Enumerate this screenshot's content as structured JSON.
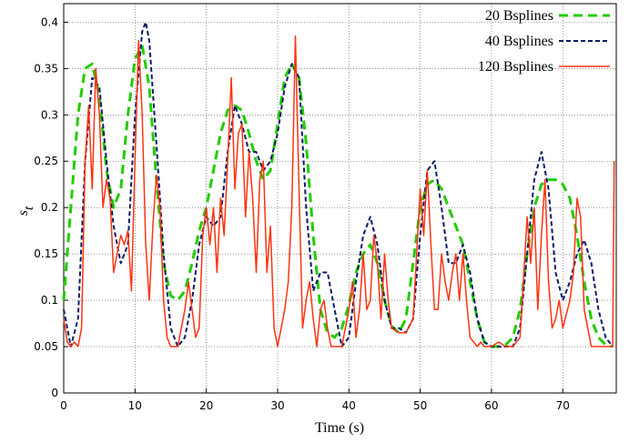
{
  "chart_data": {
    "type": "line",
    "xlabel": "Time (s)",
    "ylabel": "s",
    "ylabel_sub": "t",
    "xlim": [
      0,
      77.5
    ],
    "ylim": [
      0,
      0.42
    ],
    "xticks": [
      0,
      10,
      20,
      30,
      40,
      50,
      60,
      70
    ],
    "yticks": [
      0,
      0.05,
      0.1,
      0.15,
      0.2,
      0.25,
      0.3,
      0.35,
      0.4
    ],
    "grid": true,
    "legend": "top-right",
    "series": [
      {
        "name": "20 Bsplines",
        "color": "#22cc00",
        "dash": "10,6",
        "width": 3,
        "x": [
          0,
          1,
          2,
          3,
          4,
          5,
          6,
          7,
          8,
          9,
          10,
          11,
          12,
          13,
          14,
          15,
          16,
          17,
          18,
          19,
          20,
          21,
          22,
          23,
          24,
          25,
          26,
          27,
          28,
          29,
          30,
          31,
          32,
          33,
          34,
          35,
          36,
          37,
          38,
          39,
          40,
          41,
          42,
          43,
          44,
          45,
          46,
          47,
          48,
          49,
          50,
          51,
          52,
          53,
          54,
          55,
          56,
          57,
          58,
          59,
          60,
          61,
          62,
          63,
          64,
          65,
          66,
          67,
          68,
          69,
          70,
          71,
          72,
          73,
          74,
          75,
          76,
          77
        ],
        "values": [
          0.1,
          0.2,
          0.3,
          0.35,
          0.355,
          0.32,
          0.24,
          0.2,
          0.22,
          0.3,
          0.36,
          0.375,
          0.33,
          0.23,
          0.14,
          0.105,
          0.1,
          0.11,
          0.14,
          0.175,
          0.2,
          0.24,
          0.28,
          0.305,
          0.31,
          0.305,
          0.28,
          0.25,
          0.23,
          0.24,
          0.29,
          0.34,
          0.355,
          0.34,
          0.27,
          0.17,
          0.09,
          0.065,
          0.06,
          0.07,
          0.095,
          0.13,
          0.15,
          0.16,
          0.14,
          0.1,
          0.072,
          0.065,
          0.08,
          0.14,
          0.2,
          0.225,
          0.23,
          0.22,
          0.2,
          0.18,
          0.16,
          0.12,
          0.08,
          0.055,
          0.05,
          0.05,
          0.052,
          0.06,
          0.09,
          0.15,
          0.2,
          0.225,
          0.23,
          0.23,
          0.225,
          0.21,
          0.17,
          0.12,
          0.08,
          0.06,
          0.052,
          0.05
        ]
      },
      {
        "name": "40 Bsplines",
        "color": "#0a1a66",
        "dash": "5,3",
        "width": 2,
        "x": [
          0,
          1,
          2,
          3,
          4,
          5,
          6,
          7,
          8,
          9,
          10,
          11,
          11.5,
          12,
          13,
          14,
          15,
          16,
          17,
          18,
          19,
          20,
          21,
          22,
          23,
          24,
          25,
          26,
          27,
          28,
          29,
          30,
          31,
          32,
          33,
          34,
          35,
          36,
          37,
          38,
          39,
          40,
          41,
          42,
          43,
          44,
          45,
          46,
          47,
          48,
          49,
          50,
          51,
          52,
          53,
          54,
          55,
          56,
          57,
          58,
          59,
          60,
          61,
          62,
          63,
          64,
          65,
          66,
          67,
          68,
          69,
          70,
          71,
          72,
          73,
          74,
          75,
          76,
          77
        ],
        "values": [
          0.09,
          0.05,
          0.08,
          0.25,
          0.34,
          0.33,
          0.25,
          0.18,
          0.14,
          0.16,
          0.3,
          0.39,
          0.4,
          0.38,
          0.27,
          0.15,
          0.07,
          0.05,
          0.06,
          0.1,
          0.16,
          0.19,
          0.18,
          0.19,
          0.26,
          0.31,
          0.29,
          0.26,
          0.26,
          0.24,
          0.25,
          0.28,
          0.33,
          0.355,
          0.34,
          0.2,
          0.11,
          0.13,
          0.13,
          0.09,
          0.05,
          0.06,
          0.12,
          0.17,
          0.19,
          0.16,
          0.1,
          0.07,
          0.07,
          0.065,
          0.08,
          0.17,
          0.24,
          0.25,
          0.2,
          0.14,
          0.14,
          0.16,
          0.13,
          0.08,
          0.055,
          0.05,
          0.05,
          0.05,
          0.05,
          0.07,
          0.15,
          0.23,
          0.26,
          0.22,
          0.13,
          0.1,
          0.12,
          0.15,
          0.165,
          0.14,
          0.09,
          0.06,
          0.05
        ]
      },
      {
        "name": "120 Bsplines",
        "color": "#ff3311",
        "dash": "",
        "width": 1.5,
        "x": [
          0,
          0.5,
          1,
          1.5,
          2,
          2.5,
          3,
          3.5,
          4,
          4.5,
          5,
          5.5,
          6,
          6.5,
          7,
          7.5,
          8,
          8.5,
          9,
          9.5,
          10,
          10.5,
          11,
          11.5,
          12,
          12.5,
          13,
          13.5,
          14,
          14.5,
          15,
          15.5,
          16,
          17,
          17.5,
          18,
          18.5,
          19,
          19.5,
          20,
          20.5,
          21,
          21.5,
          22,
          22.5,
          23,
          23.5,
          24,
          24.5,
          25,
          25.5,
          26,
          26.5,
          27,
          27.5,
          28,
          28.5,
          29,
          29.5,
          30,
          30.5,
          31,
          31.5,
          32,
          32.5,
          33,
          33.5,
          34,
          34.5,
          35,
          35.5,
          36,
          36.5,
          37,
          37.5,
          38,
          39,
          40,
          40.5,
          41,
          41.5,
          42,
          42.5,
          43,
          43.5,
          44,
          44.5,
          45,
          45.5,
          46,
          47,
          48,
          49,
          49.5,
          50,
          50.5,
          51,
          51.5,
          52,
          52.5,
          53,
          53.5,
          54,
          54.5,
          55,
          55.5,
          56,
          56.5,
          57,
          58,
          58.5,
          59,
          60,
          61,
          62,
          63,
          64,
          65,
          65.5,
          66,
          66.5,
          67,
          67.5,
          68,
          68.5,
          69,
          69.5,
          70,
          71,
          71.5,
          72,
          72.5,
          73,
          73.5,
          74,
          75,
          76,
          77,
          77.2
        ],
        "values": [
          0.08,
          0.055,
          0.05,
          0.055,
          0.05,
          0.07,
          0.25,
          0.31,
          0.22,
          0.35,
          0.3,
          0.2,
          0.23,
          0.21,
          0.13,
          0.15,
          0.17,
          0.16,
          0.175,
          0.11,
          0.25,
          0.38,
          0.3,
          0.16,
          0.1,
          0.18,
          0.235,
          0.2,
          0.1,
          0.06,
          0.05,
          0.05,
          0.05,
          0.09,
          0.12,
          0.09,
          0.06,
          0.07,
          0.17,
          0.2,
          0.16,
          0.2,
          0.13,
          0.21,
          0.17,
          0.25,
          0.34,
          0.22,
          0.28,
          0.29,
          0.19,
          0.26,
          0.21,
          0.13,
          0.23,
          0.25,
          0.13,
          0.18,
          0.07,
          0.05,
          0.07,
          0.09,
          0.12,
          0.2,
          0.385,
          0.22,
          0.07,
          0.1,
          0.12,
          0.08,
          0.05,
          0.09,
          0.1,
          0.07,
          0.05,
          0.05,
          0.05,
          0.09,
          0.12,
          0.06,
          0.09,
          0.15,
          0.09,
          0.1,
          0.17,
          0.14,
          0.08,
          0.15,
          0.1,
          0.07,
          0.065,
          0.065,
          0.08,
          0.15,
          0.22,
          0.17,
          0.24,
          0.16,
          0.09,
          0.09,
          0.15,
          0.12,
          0.1,
          0.13,
          0.15,
          0.1,
          0.15,
          0.1,
          0.06,
          0.05,
          0.055,
          0.05,
          0.05,
          0.055,
          0.05,
          0.05,
          0.06,
          0.19,
          0.14,
          0.2,
          0.09,
          0.17,
          0.23,
          0.12,
          0.07,
          0.08,
          0.1,
          0.07,
          0.1,
          0.13,
          0.21,
          0.19,
          0.09,
          0.07,
          0.05,
          0.05,
          0.05,
          0.05,
          0.25
        ]
      }
    ]
  }
}
